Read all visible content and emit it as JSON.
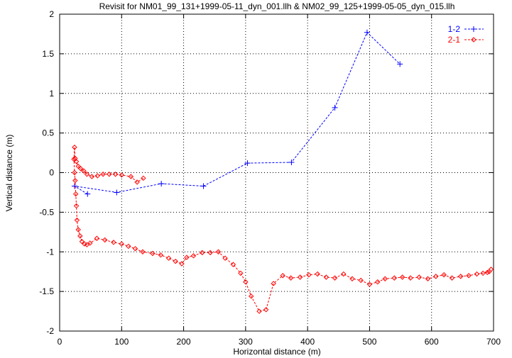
{
  "chart_data": {
    "type": "line",
    "title": "Revisit for NM01_99_131+1999-05-11_dyn_001.llh & NM02_99_125+1999-05-05_dyn_015.llh",
    "xlabel": "Horizontal distance (m)",
    "ylabel": "Vertical distance (m)",
    "xlim": [
      0,
      700
    ],
    "ylim": [
      -2,
      2
    ],
    "xticks": [
      "0",
      "100",
      "200",
      "300",
      "400",
      "500",
      "600",
      "700"
    ],
    "yticks": [
      "-2",
      "-1.5",
      "-1",
      "-0.5",
      "0",
      "0.5",
      "1",
      "1.5",
      "2"
    ],
    "grid": true,
    "legend_position": "top-right",
    "series": [
      {
        "name": "1-2",
        "color": "#0000ff",
        "marker": "plus",
        "points": [
          [
            45,
            -0.27
          ],
          [
            24,
            -0.17
          ],
          [
            92,
            -0.25
          ],
          [
            164,
            -0.14
          ],
          [
            232,
            -0.17
          ],
          [
            303,
            0.12
          ],
          [
            374,
            0.13
          ],
          [
            444,
            0.82
          ],
          [
            496,
            1.77
          ],
          [
            549,
            1.37
          ]
        ]
      },
      {
        "name": "2-1",
        "color": "#ff0000",
        "marker": "diamond",
        "points": [
          [
            135,
            -0.07
          ],
          [
            125,
            -0.12
          ],
          [
            115,
            -0.05
          ],
          [
            100,
            -0.03
          ],
          [
            90,
            -0.02
          ],
          [
            80,
            -0.02
          ],
          [
            70,
            -0.02
          ],
          [
            61,
            -0.04
          ],
          [
            52,
            -0.05
          ],
          [
            44,
            -0.02
          ],
          [
            39,
            0.02
          ],
          [
            34,
            0.05
          ],
          [
            30,
            0.08
          ],
          [
            27,
            0.14
          ],
          [
            25,
            0.18
          ],
          [
            24,
            0.32
          ],
          [
            23,
            0.17
          ],
          [
            24,
            0.0
          ],
          [
            25,
            -0.1
          ],
          [
            26,
            -0.27
          ],
          [
            27,
            -0.42
          ],
          [
            28,
            -0.6
          ],
          [
            30,
            -0.72
          ],
          [
            33,
            -0.8
          ],
          [
            36,
            -0.87
          ],
          [
            40,
            -0.9
          ],
          [
            44,
            -0.91
          ],
          [
            49,
            -0.89
          ],
          [
            60,
            -0.83
          ],
          [
            73,
            -0.85
          ],
          [
            87,
            -0.88
          ],
          [
            100,
            -0.9
          ],
          [
            111,
            -0.93
          ],
          [
            122,
            -0.96
          ],
          [
            134,
            -1.0
          ],
          [
            150,
            -1.02
          ],
          [
            163,
            -1.04
          ],
          [
            176,
            -1.08
          ],
          [
            187,
            -1.12
          ],
          [
            197,
            -1.15
          ],
          [
            205,
            -1.07
          ],
          [
            216,
            -1.05
          ],
          [
            230,
            -1.01
          ],
          [
            243,
            -1.01
          ],
          [
            256,
            -1.0
          ],
          [
            267,
            -1.08
          ],
          [
            280,
            -1.16
          ],
          [
            292,
            -1.27
          ],
          [
            300,
            -1.38
          ],
          [
            309,
            -1.56
          ],
          [
            322,
            -1.75
          ],
          [
            333,
            -1.73
          ],
          [
            345,
            -1.4
          ],
          [
            360,
            -1.3
          ],
          [
            373,
            -1.33
          ],
          [
            388,
            -1.32
          ],
          [
            402,
            -1.29
          ],
          [
            416,
            -1.28
          ],
          [
            430,
            -1.32
          ],
          [
            444,
            -1.33
          ],
          [
            458,
            -1.28
          ],
          [
            472,
            -1.34
          ],
          [
            486,
            -1.36
          ],
          [
            500,
            -1.41
          ],
          [
            513,
            -1.38
          ],
          [
            525,
            -1.34
          ],
          [
            540,
            -1.33
          ],
          [
            553,
            -1.32
          ],
          [
            566,
            -1.33
          ],
          [
            580,
            -1.32
          ],
          [
            594,
            -1.34
          ],
          [
            607,
            -1.31
          ],
          [
            620,
            -1.29
          ],
          [
            633,
            -1.33
          ],
          [
            647,
            -1.31
          ],
          [
            660,
            -1.3
          ],
          [
            673,
            -1.28
          ],
          [
            683,
            -1.27
          ],
          [
            690,
            -1.26
          ],
          [
            693,
            -1.25
          ],
          [
            696,
            -1.22
          ]
        ]
      }
    ]
  }
}
